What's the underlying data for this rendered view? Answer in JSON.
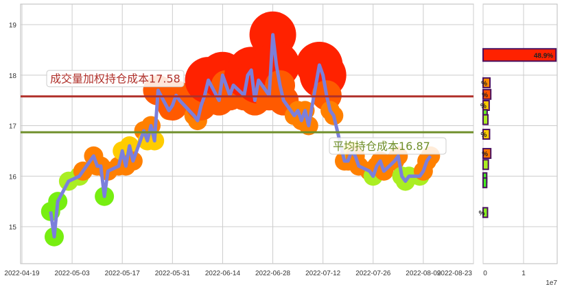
{
  "chart_data": [
    {
      "type": "line",
      "x_ticks": [
        "2022-04-19",
        "2022-05-03",
        "2022-05-17",
        "2022-05-31",
        "2022-06-14",
        "2022-06-28",
        "2022-07-12",
        "2022-07-26",
        "2022-08-09",
        "2022-08-23"
      ],
      "y_ticks": [
        "15",
        "16",
        "17",
        "18",
        "19"
      ],
      "ylim": [
        14.3,
        19.4
      ],
      "grid": true,
      "line_color": "#7b7fdb",
      "dates": [
        "2022-04-27",
        "2022-04-28",
        "2022-04-29",
        "2022-05-02",
        "2022-05-05",
        "2022-05-06",
        "2022-05-09",
        "2022-05-10",
        "2022-05-11",
        "2022-05-12",
        "2022-05-13",
        "2022-05-16",
        "2022-05-17",
        "2022-05-18",
        "2022-05-19",
        "2022-05-20",
        "2022-05-23",
        "2022-05-24",
        "2022-05-25",
        "2022-05-26",
        "2022-05-27",
        "2022-05-30",
        "2022-05-31",
        "2022-06-01",
        "2022-06-02",
        "2022-06-06",
        "2022-06-07",
        "2022-06-08",
        "2022-06-09",
        "2022-06-10",
        "2022-06-13",
        "2022-06-14",
        "2022-06-15",
        "2022-06-16",
        "2022-06-17",
        "2022-06-20",
        "2022-06-21",
        "2022-06-22",
        "2022-06-23",
        "2022-06-24",
        "2022-06-27",
        "2022-06-28",
        "2022-06-29",
        "2022-06-30",
        "2022-07-01",
        "2022-07-04",
        "2022-07-05",
        "2022-07-06",
        "2022-07-07",
        "2022-07-08",
        "2022-07-11",
        "2022-07-12",
        "2022-07-13",
        "2022-07-14",
        "2022-07-15",
        "2022-07-18",
        "2022-07-19",
        "2022-07-20",
        "2022-07-21",
        "2022-07-22",
        "2022-07-25",
        "2022-07-26",
        "2022-07-27",
        "2022-07-28",
        "2022-07-29",
        "2022-08-01",
        "2022-08-02",
        "2022-08-03",
        "2022-08-04",
        "2022-08-05",
        "2022-08-08",
        "2022-08-09",
        "2022-08-10",
        "2022-08-11"
      ],
      "values": [
        15.3,
        14.8,
        15.5,
        15.9,
        16.0,
        16.1,
        16.4,
        16.2,
        16.2,
        15.6,
        16.1,
        16.2,
        16.5,
        16.2,
        16.6,
        16.3,
        16.9,
        16.7,
        17.0,
        16.7,
        17.7,
        17.3,
        17.4,
        17.6,
        17.5,
        17.2,
        17.1,
        17.4,
        17.6,
        17.9,
        17.5,
        18.0,
        17.8,
        17.6,
        17.8,
        17.6,
        18.0,
        18.1,
        17.5,
        17.9,
        17.6,
        18.8,
        18.2,
        17.8,
        17.5,
        17.2,
        17.3,
        17.1,
        17.3,
        17.0,
        18.2,
        18.0,
        17.6,
        17.3,
        17.2,
        16.3,
        16.3,
        16.5,
        16.4,
        16.2,
        16.1,
        16.0,
        16.2,
        16.3,
        16.1,
        16.3,
        16.4,
        16.0,
        15.9,
        16.0,
        16.0,
        16.1,
        16.3,
        16.4
      ],
      "hlines": [
        {
          "label": "成交量加权持仓成本17.58",
          "value": 17.58,
          "color": "#b0302a"
        },
        {
          "label": "平均持仓成本16.87",
          "value": 16.87,
          "color": "#6f8f2a"
        }
      ]
    },
    {
      "type": "bar",
      "orientation": "horizontal",
      "x_ticks": [
        "0",
        "1"
      ],
      "x_offset_label": "1e7",
      "xlim": [
        0,
        1.85
      ],
      "prices": [
        18.4,
        17.85,
        17.62,
        17.4,
        17.22,
        17.12,
        16.83,
        16.45,
        16.23,
        15.97,
        15.87,
        15.28
      ],
      "values": [
        1.8,
        0.17,
        0.19,
        0.15,
        0.1,
        0.12,
        0.16,
        0.19,
        0.13,
        0.09,
        0.09,
        0.11
      ],
      "colors": [
        "#ff2200",
        "#ff8c00",
        "#ff5500",
        "#ffcc00",
        "#66ee22",
        "#aaee22",
        "#ffcc00",
        "#ff7700",
        "#aaee22",
        "#44ee22",
        "#44ee22",
        "#88ee22"
      ],
      "labels": [
        "48.9%",
        "%",
        "%",
        "%",
        "",
        "",
        "%",
        "%",
        "",
        "",
        "",
        "%"
      ]
    }
  ]
}
